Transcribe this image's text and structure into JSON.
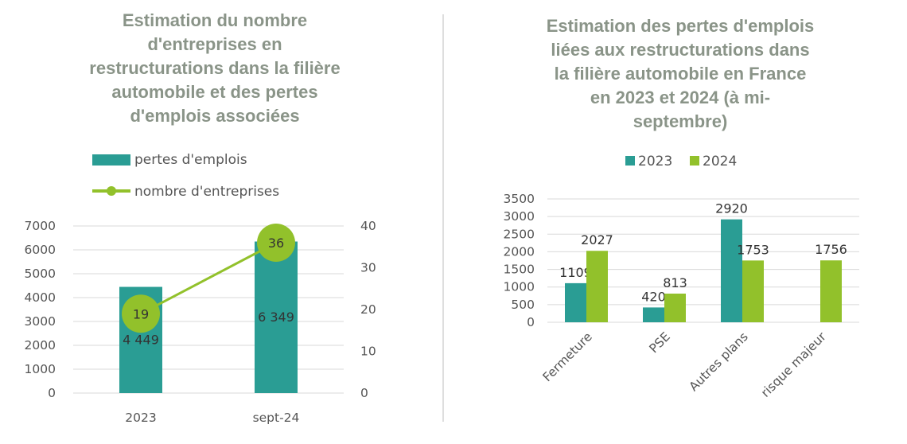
{
  "colors": {
    "teal": "#2a9d94",
    "green": "#92c12b",
    "title": "#8a9488",
    "divider": "#c8c8c8"
  },
  "chart_data": [
    {
      "type": "bar+line",
      "title_lines": [
        "Estimation du nombre",
        "d'entreprises en",
        "restructurations dans la filière",
        "automobile et des pertes",
        "d'emplois associées"
      ],
      "categories": [
        "2023",
        "sept-24"
      ],
      "series": [
        {
          "name": "pertes d'emplois",
          "type": "bar",
          "axis": "left",
          "values": [
            4449,
            6349
          ],
          "labels": [
            "4 449",
            "6 349"
          ]
        },
        {
          "name": "nombre d'entreprises",
          "type": "line",
          "axis": "right",
          "values": [
            19,
            36
          ],
          "labels": [
            "19",
            "36"
          ]
        }
      ],
      "y_left": {
        "min": 0,
        "max": 7000,
        "ticks": [
          0,
          1000,
          2000,
          3000,
          4000,
          5000,
          6000,
          7000
        ],
        "tick_labels": [
          "0",
          "1000",
          "2000",
          "3000",
          "4000",
          "5000",
          "6000",
          "7000"
        ]
      },
      "y_right": {
        "min": 0,
        "max": 40,
        "ticks": [
          0,
          10,
          20,
          30,
          40
        ],
        "tick_labels": [
          "0",
          "10",
          "20",
          "30",
          "40"
        ]
      },
      "grid": true,
      "legend_position": "top"
    },
    {
      "type": "bar",
      "title_lines": [
        "Estimation des pertes d'emplois",
        "liées aux restructurations dans",
        "la filière automobile en France",
        "en 2023 et 2024 (à mi-",
        "septembre)"
      ],
      "categories": [
        "Fermeture",
        "PSE",
        "Autres plans",
        "risque majeur"
      ],
      "series": [
        {
          "name": "2023",
          "values": [
            1109,
            420,
            2920,
            null
          ],
          "labels": [
            "1109",
            "420",
            "2920",
            ""
          ]
        },
        {
          "name": "2024",
          "values": [
            2027,
            813,
            1753,
            1756
          ],
          "labels": [
            "2027",
            "813",
            "1753",
            "1756"
          ]
        }
      ],
      "y": {
        "min": 0,
        "max": 3500,
        "ticks": [
          0,
          500,
          1000,
          1500,
          2000,
          2500,
          3000,
          3500
        ],
        "tick_labels": [
          "0",
          "500",
          "1000",
          "1500",
          "2000",
          "2500",
          "3000",
          "3500"
        ]
      },
      "grid": true,
      "legend_position": "top"
    }
  ]
}
